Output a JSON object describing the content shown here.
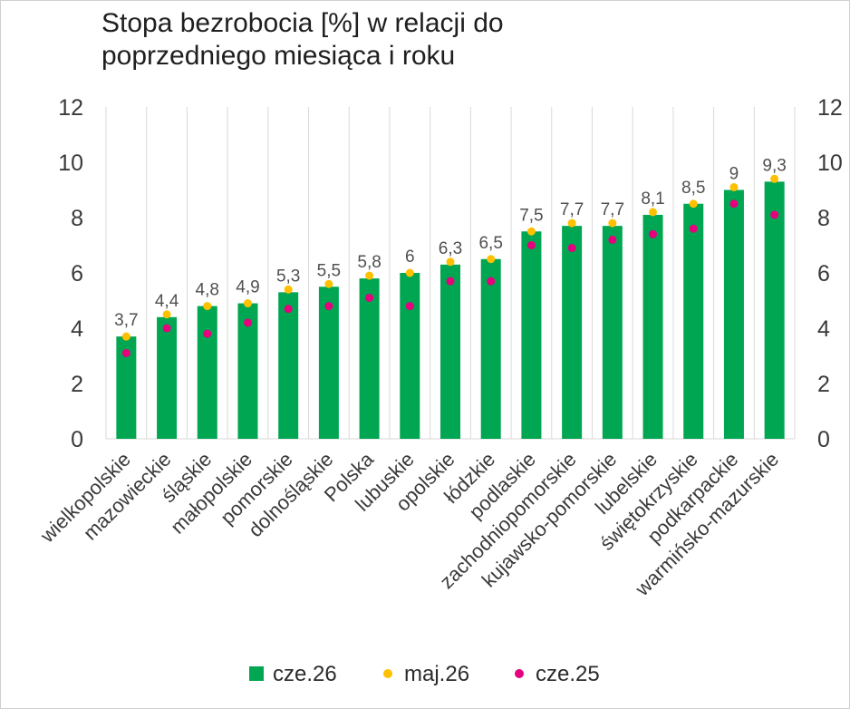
{
  "chart_data": {
    "type": "bar",
    "title_line1": "Stopa bezrobocia [%] w relacji do",
    "title_line2": "poprzedniego miesiąca i roku",
    "categories": [
      "wielkopolskie",
      "mazowieckie",
      "śląskie",
      "małopolskie",
      "pomorskie",
      "dolnośląskie",
      "Polska",
      "lubuskie",
      "opolskie",
      "łódzkie",
      "podlaskie",
      "zachodniopomorskie",
      "kujawsko-pomorskie",
      "lubelskie",
      "świętokrzyskie",
      "podkarpackie",
      "warmińsko-mazurskie"
    ],
    "series": [
      {
        "name": "cze.26",
        "type": "bar",
        "color": "#00a651",
        "values": [
          3.7,
          4.4,
          4.8,
          4.9,
          5.3,
          5.5,
          5.8,
          6,
          6.3,
          6.5,
          7.5,
          7.7,
          7.7,
          8.1,
          8.5,
          9,
          9.3
        ],
        "labels": [
          "3,7",
          "4,4",
          "4,8",
          "4,9",
          "5,3",
          "5,5",
          "5,8",
          "6",
          "6,3",
          "6,5",
          "7,5",
          "7,7",
          "7,7",
          "8,1",
          "8,5",
          "9",
          "9,3"
        ]
      },
      {
        "name": "maj.26",
        "type": "scatter",
        "color": "#ffc000",
        "values": [
          3.7,
          4.5,
          4.8,
          4.9,
          5.4,
          5.6,
          5.9,
          6.0,
          6.4,
          6.5,
          7.5,
          7.8,
          7.8,
          8.2,
          8.5,
          9.1,
          9.4
        ]
      },
      {
        "name": "cze.25",
        "type": "scatter",
        "color": "#e6007e",
        "values": [
          3.1,
          4.0,
          3.8,
          4.2,
          4.7,
          4.8,
          5.1,
          4.8,
          5.7,
          5.7,
          7.0,
          6.9,
          7.2,
          7.4,
          7.6,
          8.5,
          8.1
        ]
      }
    ],
    "yticks": [
      "0",
      "2",
      "4",
      "6",
      "8",
      "10",
      "12"
    ],
    "ylim": [
      0,
      12
    ],
    "grid": "vertical",
    "legend": "bottom"
  }
}
